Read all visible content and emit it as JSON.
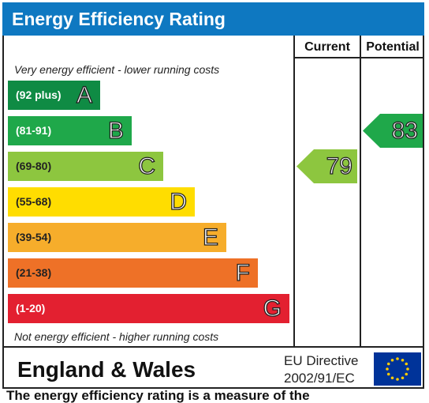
{
  "title": "Energy Efficiency Rating",
  "columns": {
    "current": "Current",
    "potential": "Potential"
  },
  "notes": {
    "top": "Very energy efficient - lower running costs",
    "bottom": "Not energy efficient - higher running costs"
  },
  "chart_data": {
    "type": "bar",
    "title": "Energy Efficiency Rating",
    "categories": [
      "A",
      "B",
      "C",
      "D",
      "E",
      "F",
      "G"
    ],
    "ranges": [
      "(92 plus)",
      "(81-91)",
      "(69-80)",
      "(55-68)",
      "(39-54)",
      "(21-38)",
      "(1-20)"
    ],
    "colors": [
      "#0f8b44",
      "#1fa84a",
      "#8dc63f",
      "#ffdd00",
      "#f6ad2b",
      "#ee7127",
      "#e32030"
    ],
    "range_text_colors": [
      "#ffffff",
      "#ffffff",
      "#222222",
      "#222222",
      "#222222",
      "#222222",
      "#ffffff"
    ],
    "current": {
      "value": 79,
      "band": "C",
      "color": "#8dc63f"
    },
    "potential": {
      "value": 83,
      "band": "B",
      "color": "#1fa84a"
    }
  },
  "footer": {
    "country": "England & Wales",
    "directive_line1": "EU Directive",
    "directive_line2": "2002/91/EC"
  },
  "cutoff_text": "The energy efficiency rating is a measure of the"
}
